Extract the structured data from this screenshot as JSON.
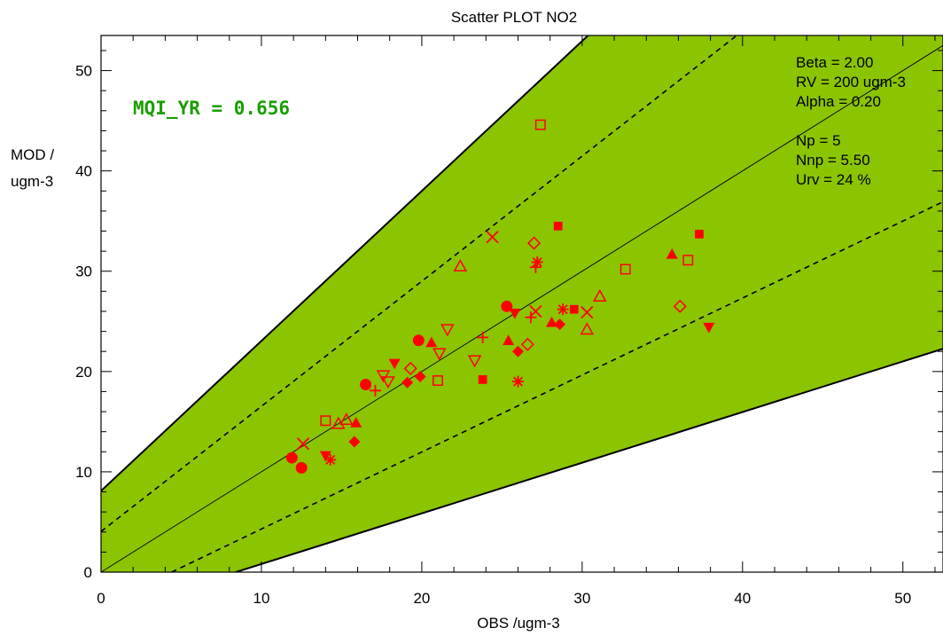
{
  "chart_data": {
    "type": "scatter",
    "title": "Scatter PLOT   NO2",
    "xlabel": "OBS /ugm-3",
    "ylabel_line1": "MOD /",
    "ylabel_line2": "ugm-3",
    "xlim": [
      0,
      52.5
    ],
    "ylim": [
      0,
      53.5
    ],
    "xticks": [
      0,
      10,
      20,
      30,
      40,
      50
    ],
    "yticks": [
      0,
      10,
      20,
      30,
      40,
      50
    ],
    "xtick_labels": [
      "0",
      "10",
      "20",
      "30",
      "40",
      "50"
    ],
    "ytick_labels": [
      "0",
      "10",
      "20",
      "30",
      "40",
      "50"
    ],
    "mqi_label": "MQI_YR = 0.656",
    "stats_lines": [
      "Beta = 2.00",
      "RV = 200 ugm-3",
      "Alpha = 0.20",
      "Np = 5",
      "Nnp = 5.50",
      "Urv = 24 %"
    ],
    "band": {
      "outer_offset_at_zero": 8.1,
      "outer_slope_upper": 1.495,
      "outer_slope_lower": 0.505,
      "inner_offset_at_zero": 4.05,
      "inner_slope_upper": 1.2475,
      "inner_slope_lower": 0.7525
    },
    "colors": {
      "band_fill": "#8bc400",
      "marker": "#ff0000",
      "mqi_text": "#1a9e00"
    },
    "points": [
      {
        "marker": "circle-filled",
        "x": 11.9,
        "y": 11.4
      },
      {
        "marker": "circle-filled",
        "x": 12.5,
        "y": 10.4
      },
      {
        "marker": "circle-filled",
        "x": 16.5,
        "y": 18.7
      },
      {
        "marker": "circle-filled",
        "x": 19.8,
        "y": 23.1
      },
      {
        "marker": "circle-filled",
        "x": 25.3,
        "y": 26.5
      },
      {
        "marker": "x",
        "x": 12.6,
        "y": 12.8
      },
      {
        "marker": "x",
        "x": 24.4,
        "y": 33.4
      },
      {
        "marker": "x",
        "x": 27.1,
        "y": 26.0
      },
      {
        "marker": "x",
        "x": 30.3,
        "y": 25.9
      },
      {
        "marker": "plus",
        "x": 17.1,
        "y": 18.1
      },
      {
        "marker": "plus",
        "x": 23.8,
        "y": 23.4
      },
      {
        "marker": "plus",
        "x": 26.8,
        "y": 25.4
      },
      {
        "marker": "plus",
        "x": 27.1,
        "y": 30.4
      },
      {
        "marker": "asterisk",
        "x": 14.3,
        "y": 11.2
      },
      {
        "marker": "asterisk",
        "x": 26.0,
        "y": 19.0
      },
      {
        "marker": "asterisk",
        "x": 27.2,
        "y": 30.9
      },
      {
        "marker": "asterisk",
        "x": 28.8,
        "y": 26.2
      },
      {
        "marker": "diamond-filled",
        "x": 15.8,
        "y": 13.0
      },
      {
        "marker": "diamond-filled",
        "x": 19.1,
        "y": 18.9
      },
      {
        "marker": "diamond-filled",
        "x": 19.9,
        "y": 19.5
      },
      {
        "marker": "diamond-filled",
        "x": 26.0,
        "y": 22.0
      },
      {
        "marker": "diamond-filled",
        "x": 28.6,
        "y": 24.7
      },
      {
        "marker": "diamond-open",
        "x": 19.3,
        "y": 20.3
      },
      {
        "marker": "diamond-open",
        "x": 26.6,
        "y": 22.7
      },
      {
        "marker": "diamond-open",
        "x": 27.0,
        "y": 32.8
      },
      {
        "marker": "diamond-open",
        "x": 36.1,
        "y": 26.5
      },
      {
        "marker": "triangle-up-filled",
        "x": 15.9,
        "y": 14.9
      },
      {
        "marker": "triangle-up-filled",
        "x": 20.6,
        "y": 22.9
      },
      {
        "marker": "triangle-up-filled",
        "x": 25.4,
        "y": 23.1
      },
      {
        "marker": "triangle-up-filled",
        "x": 28.1,
        "y": 24.9
      },
      {
        "marker": "triangle-up-filled",
        "x": 35.6,
        "y": 31.7
      },
      {
        "marker": "triangle-up-open",
        "x": 14.8,
        "y": 14.8
      },
      {
        "marker": "triangle-up-open",
        "x": 15.3,
        "y": 15.2
      },
      {
        "marker": "triangle-up-open",
        "x": 22.4,
        "y": 30.5
      },
      {
        "marker": "triangle-up-open",
        "x": 30.3,
        "y": 24.2
      },
      {
        "marker": "triangle-up-open",
        "x": 31.1,
        "y": 27.5
      },
      {
        "marker": "triangle-down-filled",
        "x": 14.0,
        "y": 11.6
      },
      {
        "marker": "triangle-down-filled",
        "x": 18.3,
        "y": 20.8
      },
      {
        "marker": "triangle-down-filled",
        "x": 25.8,
        "y": 25.8
      },
      {
        "marker": "triangle-down-filled",
        "x": 37.9,
        "y": 24.4
      },
      {
        "marker": "triangle-down-open",
        "x": 17.6,
        "y": 19.6
      },
      {
        "marker": "triangle-down-open",
        "x": 17.9,
        "y": 19.0
      },
      {
        "marker": "triangle-down-open",
        "x": 21.1,
        "y": 21.8
      },
      {
        "marker": "triangle-down-open",
        "x": 21.6,
        "y": 24.2
      },
      {
        "marker": "triangle-down-open",
        "x": 23.3,
        "y": 21.1
      },
      {
        "marker": "square-filled",
        "x": 23.8,
        "y": 19.2
      },
      {
        "marker": "square-filled",
        "x": 28.5,
        "y": 34.5
      },
      {
        "marker": "square-filled",
        "x": 29.5,
        "y": 26.2
      },
      {
        "marker": "square-filled",
        "x": 37.3,
        "y": 33.7
      },
      {
        "marker": "square-open",
        "x": 14.0,
        "y": 15.1
      },
      {
        "marker": "square-open",
        "x": 21.0,
        "y": 19.1
      },
      {
        "marker": "square-open",
        "x": 27.4,
        "y": 44.6
      },
      {
        "marker": "square-open",
        "x": 32.7,
        "y": 30.2
      },
      {
        "marker": "square-open",
        "x": 36.6,
        "y": 31.1
      }
    ]
  }
}
